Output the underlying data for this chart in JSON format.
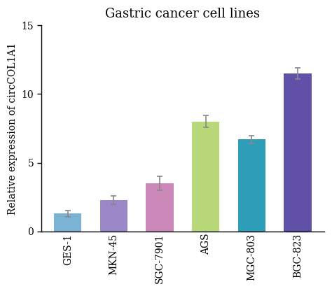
{
  "title": "Gastric cancer cell lines",
  "ylabel": "Relative expression of circCOL1A1",
  "categories": [
    "GES-1",
    "MKN-45",
    "SGC-7901",
    "AGS",
    "MGC-803",
    "BGC-823"
  ],
  "values": [
    1.3,
    2.3,
    3.5,
    8.0,
    6.7,
    11.5
  ],
  "errors": [
    0.22,
    0.3,
    0.52,
    0.42,
    0.28,
    0.42
  ],
  "bar_colors": [
    "#7ab3d4",
    "#9b87c8",
    "#cc88b8",
    "#b8d87a",
    "#2e9db8",
    "#6050a8"
  ],
  "ylim": [
    0,
    15
  ],
  "yticks": [
    0,
    5,
    10,
    15
  ],
  "bar_width": 0.6,
  "background_color": "#ffffff",
  "title_fontsize": 13,
  "label_fontsize": 10,
  "tick_fontsize": 10,
  "error_color": "#888888",
  "error_capsize": 3,
  "error_linewidth": 1.2
}
